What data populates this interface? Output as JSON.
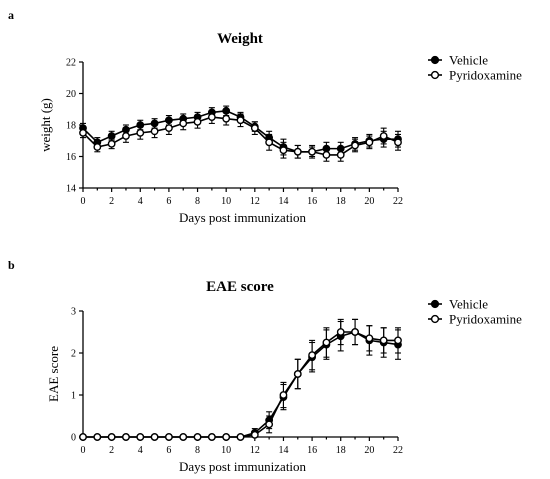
{
  "panels": [
    {
      "letter": "a"
    },
    {
      "letter": "b"
    }
  ],
  "chart_data": [
    {
      "type": "line",
      "title": "Weight",
      "xlabel": "Days post immunization",
      "ylabel": "weight (g)",
      "xlim": [
        0,
        22
      ],
      "ylim": [
        14,
        22
      ],
      "xticks": [
        0,
        2,
        4,
        6,
        8,
        10,
        12,
        14,
        16,
        18,
        20,
        22
      ],
      "yticks": [
        14,
        16,
        18,
        20,
        22
      ],
      "grid": false,
      "legend_position": "top-right",
      "x": [
        0,
        1,
        2,
        3,
        4,
        5,
        6,
        7,
        8,
        9,
        10,
        11,
        12,
        13,
        14,
        15,
        16,
        17,
        18,
        19,
        20,
        21,
        22
      ],
      "series": [
        {
          "name": "Vehicle",
          "marker": "filled-circle",
          "values": [
            17.8,
            16.9,
            17.3,
            17.7,
            18.0,
            18.1,
            18.3,
            18.4,
            18.5,
            18.8,
            18.9,
            18.5,
            17.9,
            17.2,
            16.6,
            16.3,
            16.3,
            16.5,
            16.5,
            16.8,
            17.0,
            17.1,
            17.1
          ],
          "errors": [
            0.3,
            0.3,
            0.3,
            0.3,
            0.3,
            0.3,
            0.3,
            0.3,
            0.3,
            0.3,
            0.3,
            0.3,
            0.3,
            0.4,
            0.5,
            0.4,
            0.3,
            0.4,
            0.4,
            0.4,
            0.4,
            0.5,
            0.5
          ]
        },
        {
          "name": "Pyridoxamine",
          "marker": "open-circle",
          "values": [
            17.5,
            16.6,
            16.8,
            17.3,
            17.5,
            17.6,
            17.8,
            18.1,
            18.2,
            18.5,
            18.4,
            18.3,
            17.8,
            16.9,
            16.4,
            16.3,
            16.3,
            16.1,
            16.1,
            16.7,
            16.9,
            17.3,
            16.9
          ],
          "errors": [
            0.3,
            0.3,
            0.3,
            0.4,
            0.4,
            0.4,
            0.4,
            0.4,
            0.4,
            0.4,
            0.4,
            0.4,
            0.4,
            0.5,
            0.5,
            0.4,
            0.4,
            0.4,
            0.4,
            0.4,
            0.4,
            0.5,
            0.5
          ]
        }
      ]
    },
    {
      "type": "line",
      "title": "EAE score",
      "xlabel": "Days post immunization",
      "ylabel": "EAE score",
      "xlim": [
        0,
        22
      ],
      "ylim": [
        0,
        3
      ],
      "xticks": [
        0,
        2,
        4,
        6,
        8,
        10,
        12,
        14,
        16,
        18,
        20,
        22
      ],
      "yticks": [
        0,
        1,
        2,
        3
      ],
      "grid": false,
      "legend_position": "top-right",
      "x": [
        0,
        1,
        2,
        3,
        4,
        5,
        6,
        7,
        8,
        9,
        10,
        11,
        12,
        13,
        14,
        15,
        16,
        17,
        18,
        19,
        20,
        21,
        22
      ],
      "series": [
        {
          "name": "Vehicle",
          "marker": "filled-circle",
          "values": [
            0,
            0,
            0,
            0,
            0,
            0,
            0,
            0,
            0,
            0,
            0,
            0,
            0.1,
            0.4,
            0.95,
            1.5,
            1.9,
            2.2,
            2.4,
            2.5,
            2.3,
            2.25,
            2.2
          ],
          "errors": [
            0,
            0,
            0,
            0,
            0,
            0,
            0,
            0,
            0,
            0,
            0,
            0,
            0.1,
            0.2,
            0.3,
            0.35,
            0.35,
            0.35,
            0.35,
            0.3,
            0.35,
            0.35,
            0.35
          ]
        },
        {
          "name": "Pyridoxamine",
          "marker": "open-circle",
          "values": [
            0,
            0,
            0,
            0,
            0,
            0,
            0,
            0,
            0,
            0,
            0,
            0,
            0.05,
            0.3,
            1.0,
            1.5,
            1.95,
            2.25,
            2.5,
            2.5,
            2.35,
            2.3,
            2.3
          ],
          "errors": [
            0,
            0,
            0,
            0,
            0,
            0,
            0,
            0,
            0,
            0,
            0,
            0,
            0.05,
            0.2,
            0.3,
            0.35,
            0.35,
            0.35,
            0.3,
            0.3,
            0.3,
            0.3,
            0.3
          ]
        }
      ]
    }
  ]
}
